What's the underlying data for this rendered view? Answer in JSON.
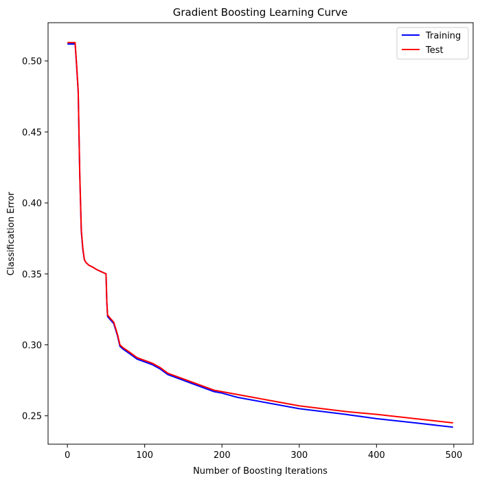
{
  "chart_data": {
    "type": "line",
    "title": "Gradient Boosting Learning Curve",
    "xlabel": "Number of Boosting Iterations",
    "ylabel": "Classification Error",
    "xlim": [
      -25,
      525
    ],
    "ylim": [
      0.23,
      0.527
    ],
    "xticks": [
      0,
      100,
      200,
      300,
      400,
      500
    ],
    "yticks": [
      0.25,
      0.3,
      0.35,
      0.4,
      0.45,
      0.5
    ],
    "ytick_labels": [
      "0.25",
      "0.30",
      "0.35",
      "0.40",
      "0.45",
      "0.50"
    ],
    "xtick_labels": [
      "0",
      "100",
      "200",
      "300",
      "400",
      "500"
    ],
    "grid": false,
    "legend_position": "top-right",
    "series": [
      {
        "name": "Training",
        "color": "#0000ff",
        "x": [
          0,
          10,
          12,
          14,
          16,
          18,
          20,
          22,
          24,
          28,
          32,
          35,
          38,
          42,
          46,
          50,
          51,
          52,
          55,
          60,
          65,
          68,
          72,
          80,
          90,
          100,
          110,
          120,
          130,
          140,
          150,
          160,
          170,
          180,
          190,
          200,
          220,
          240,
          260,
          280,
          300,
          330,
          360,
          400,
          450,
          499
        ],
        "y": [
          0.512,
          0.512,
          0.496,
          0.478,
          0.42,
          0.38,
          0.367,
          0.36,
          0.358,
          0.356,
          0.355,
          0.354,
          0.353,
          0.352,
          0.351,
          0.35,
          0.33,
          0.32,
          0.318,
          0.315,
          0.306,
          0.299,
          0.297,
          0.294,
          0.29,
          0.288,
          0.286,
          0.283,
          0.279,
          0.277,
          0.275,
          0.273,
          0.271,
          0.269,
          0.267,
          0.266,
          0.263,
          0.261,
          0.259,
          0.257,
          0.255,
          0.253,
          0.251,
          0.248,
          0.245,
          0.242
        ]
      },
      {
        "name": "Test",
        "color": "#ff0000",
        "x": [
          0,
          10,
          12,
          14,
          16,
          18,
          20,
          22,
          24,
          28,
          32,
          35,
          38,
          42,
          46,
          50,
          51,
          52,
          55,
          60,
          65,
          68,
          72,
          80,
          90,
          100,
          110,
          120,
          130,
          140,
          150,
          160,
          170,
          180,
          190,
          200,
          220,
          240,
          260,
          280,
          300,
          330,
          360,
          400,
          450,
          499
        ],
        "y": [
          0.513,
          0.513,
          0.497,
          0.479,
          0.421,
          0.381,
          0.368,
          0.36,
          0.358,
          0.356,
          0.355,
          0.354,
          0.353,
          0.352,
          0.351,
          0.35,
          0.331,
          0.321,
          0.319,
          0.316,
          0.307,
          0.3,
          0.298,
          0.295,
          0.291,
          0.289,
          0.287,
          0.284,
          0.28,
          0.278,
          0.276,
          0.274,
          0.272,
          0.27,
          0.268,
          0.267,
          0.265,
          0.263,
          0.261,
          0.259,
          0.257,
          0.255,
          0.253,
          0.251,
          0.248,
          0.245
        ]
      }
    ]
  }
}
